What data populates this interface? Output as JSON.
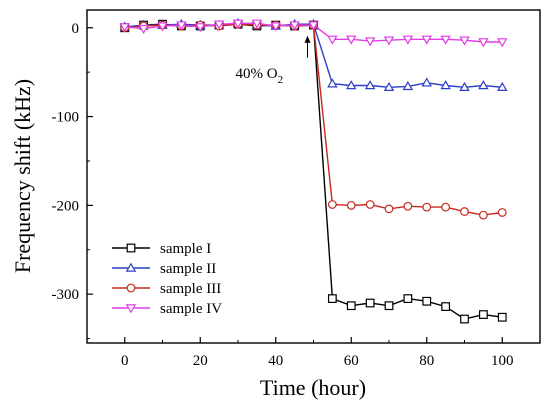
{
  "chart_data": {
    "type": "line",
    "xlabel": "Time (hour)",
    "ylabel": "Frequency shift (kHz)",
    "xlim": [
      -10,
      110
    ],
    "ylim": [
      -355,
      20
    ],
    "xticks": [
      0,
      20,
      40,
      60,
      80,
      100
    ],
    "yticks": [
      0,
      -100,
      -200,
      -300
    ],
    "legend_position": "bottom-left",
    "annotation": {
      "text": "40% O",
      "subscript": "2",
      "x": 50,
      "y": 0
    },
    "series": [
      {
        "name": "sample I",
        "color": "#000000",
        "marker": "square",
        "x": [
          0,
          5,
          10,
          15,
          20,
          25,
          30,
          35,
          40,
          45,
          50,
          55,
          60,
          65,
          70,
          75,
          80,
          85,
          90,
          95,
          100
        ],
        "y": [
          0,
          3,
          4,
          2,
          2,
          3,
          4,
          2,
          3,
          2,
          3,
          -305,
          -313,
          -310,
          -313,
          -305,
          -308,
          -314,
          -328,
          -323,
          -326
        ]
      },
      {
        "name": "sample II",
        "color": "#2b3ec9",
        "marker": "triangle-up",
        "x": [
          0,
          5,
          10,
          15,
          20,
          25,
          30,
          35,
          40,
          45,
          50,
          55,
          60,
          65,
          70,
          75,
          80,
          85,
          90,
          95,
          100
        ],
        "y": [
          1,
          3,
          3,
          4,
          3,
          3,
          5,
          3,
          2,
          4,
          4,
          -63,
          -65,
          -65,
          -67,
          -66,
          -62,
          -65,
          -67,
          -65,
          -67
        ]
      },
      {
        "name": "sample III",
        "color": "#c8281e",
        "marker": "circle",
        "x": [
          0,
          5,
          10,
          15,
          20,
          25,
          30,
          35,
          40,
          45,
          50,
          55,
          60,
          65,
          70,
          75,
          80,
          85,
          90,
          95,
          100
        ],
        "y": [
          0,
          2,
          3,
          2,
          3,
          2,
          4,
          3,
          3,
          2,
          3,
          -199,
          -200,
          -199,
          -204,
          -201,
          -202,
          -202,
          -207,
          -211,
          -208
        ]
      },
      {
        "name": "sample IV",
        "color": "#e23ce6",
        "marker": "triangle-down",
        "x": [
          0,
          5,
          10,
          15,
          20,
          25,
          30,
          35,
          40,
          45,
          50,
          55,
          60,
          65,
          70,
          75,
          80,
          85,
          90,
          95,
          100
        ],
        "y": [
          1,
          -1,
          2,
          3,
          1,
          4,
          5,
          5,
          2,
          3,
          3,
          -13,
          -13,
          -15,
          -14,
          -13,
          -13,
          -13,
          -14,
          -16,
          -16
        ]
      }
    ]
  }
}
